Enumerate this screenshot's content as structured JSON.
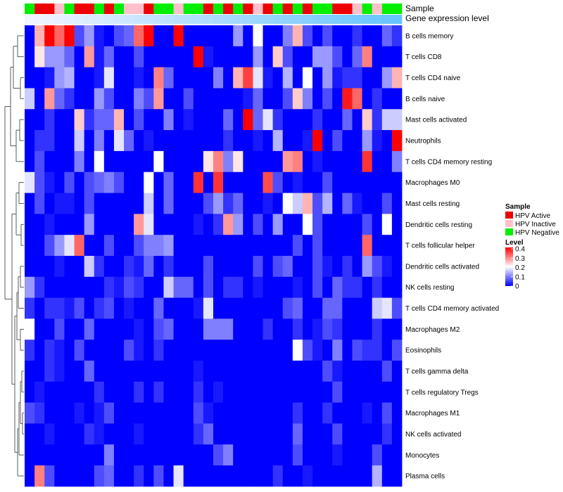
{
  "chart_data": {
    "type": "heatmap",
    "annotation_labels": [
      "Sample",
      "Gene expression level"
    ],
    "rows": [
      "B cells memory",
      "T cells CD8",
      "T cells CD4 naive",
      "B cells naive",
      "Mast cells activated",
      "Neutrophils",
      "T cells CD4 memory resting",
      "Macrophages M0",
      "Mast cells resting",
      "Dendritic cells resting",
      "T cells follicular helper",
      "Dendritic cells activated",
      "NK cells resting",
      "T cells CD4 memory activated",
      "Macrophages M2",
      "Eosinophils",
      "T cells gamma delta",
      "T cells regulatory  Tregs",
      "Macrophages M1",
      "NK cells activated",
      "Monocytes",
      "Plasma cells"
    ],
    "sample_groups": [
      "N",
      "A",
      "A",
      "I",
      "N",
      "A",
      "A",
      "N",
      "A",
      "N",
      "I",
      "I",
      "A",
      "N",
      "N",
      "I",
      "N",
      "N",
      "A",
      "N",
      "A",
      "N",
      "A",
      "I",
      "A",
      "N",
      "A",
      "N",
      "A",
      "N",
      "N",
      "A",
      "A",
      "I",
      "N",
      "I",
      "N",
      "N"
    ],
    "sample_legend": {
      "title": "Sample",
      "entries": [
        {
          "key": "A",
          "label": "HPV Active",
          "color": "#ee0000"
        },
        {
          "key": "I",
          "label": "HPV Inactive",
          "color": "#ffc0cb"
        },
        {
          "key": "N",
          "label": "HPV Negative",
          "color": "#00ee00"
        }
      ]
    },
    "expression_gradient": {
      "low": "#f2f4ff",
      "high": "#66c4ff"
    },
    "level_legend": {
      "title": "Level",
      "ticks": [
        "0.4",
        "0.3",
        "0.2",
        "0.1",
        "0"
      ],
      "min": 0,
      "max": 0.4,
      "colors": {
        "low": "#0000ff",
        "mid": "#ffffff",
        "high": "#ff0000"
      }
    },
    "values": [
      [
        0.0,
        0.26,
        0.4,
        0.32,
        0.4,
        0.06,
        0.12,
        0.02,
        0.0,
        0.06,
        0.08,
        0.32,
        0.4,
        0.0,
        0.0,
        0.4,
        0.0,
        0.0,
        0.0,
        0.0,
        0.0,
        0.12,
        0.0,
        0.2,
        0.0,
        0.0,
        0.1,
        0.26,
        0.06,
        0.0,
        0.06,
        0.0,
        0.0,
        0.04,
        0.0,
        0.0,
        0.08,
        0.04
      ],
      [
        0.0,
        0.22,
        0.12,
        0.12,
        0.08,
        0.0,
        0.28,
        0.02,
        0.08,
        0.0,
        0.0,
        0.06,
        0.0,
        0.0,
        0.0,
        0.0,
        0.0,
        0.4,
        0.02,
        0.0,
        0.0,
        0.0,
        0.0,
        0.12,
        0.0,
        0.24,
        0.06,
        0.0,
        0.0,
        0.12,
        0.12,
        0.06,
        0.0,
        0.08,
        0.3,
        0.0,
        0.0,
        0.0
      ],
      [
        0.0,
        0.0,
        0.02,
        0.12,
        0.14,
        0.0,
        0.0,
        0.02,
        0.18,
        0.0,
        0.0,
        0.02,
        0.0,
        0.3,
        0.08,
        0.0,
        0.0,
        0.0,
        0.0,
        0.1,
        0.0,
        0.26,
        0.35,
        0.18,
        0.02,
        0.0,
        0.14,
        0.0,
        0.2,
        0.0,
        0.12,
        0.02,
        0.04,
        0.04,
        0.0,
        0.0,
        0.12,
        0.26
      ],
      [
        0.16,
        0.0,
        0.28,
        0.08,
        0.04,
        0.0,
        0.0,
        0.12,
        0.06,
        0.0,
        0.0,
        0.1,
        0.06,
        0.28,
        0.0,
        0.0,
        0.06,
        0.0,
        0.0,
        0.0,
        0.0,
        0.0,
        0.02,
        0.08,
        0.0,
        0.0,
        0.06,
        0.24,
        0.1,
        0.0,
        0.06,
        0.0,
        0.38,
        0.32,
        0.0,
        0.04,
        0.0,
        0.0
      ],
      [
        0.0,
        0.0,
        0.04,
        0.0,
        0.0,
        0.24,
        0.04,
        0.08,
        0.08,
        0.26,
        0.0,
        0.06,
        0.0,
        0.0,
        0.1,
        0.0,
        0.02,
        0.0,
        0.0,
        0.0,
        0.08,
        0.0,
        0.4,
        0.08,
        0.18,
        0.04,
        0.0,
        0.0,
        0.0,
        0.04,
        0.0,
        0.0,
        0.08,
        0.0,
        0.24,
        0.04,
        0.16,
        0.16
      ],
      [
        0.0,
        0.04,
        0.04,
        0.0,
        0.0,
        0.16,
        0.0,
        0.1,
        0.0,
        0.18,
        0.08,
        0.0,
        0.02,
        0.0,
        0.0,
        0.0,
        0.0,
        0.0,
        0.0,
        0.0,
        0.04,
        0.0,
        0.0,
        0.02,
        0.0,
        0.14,
        0.0,
        0.0,
        0.02,
        0.4,
        0.0,
        0.06,
        0.0,
        0.0,
        0.12,
        0.02,
        0.0,
        0.4
      ],
      [
        0.0,
        0.06,
        0.0,
        0.0,
        0.0,
        0.1,
        0.0,
        0.2,
        0.0,
        0.0,
        0.0,
        0.0,
        0.0,
        0.2,
        0.0,
        0.0,
        0.0,
        0.0,
        0.22,
        0.3,
        0.1,
        0.22,
        0.0,
        0.0,
        0.0,
        0.0,
        0.28,
        0.3,
        0.0,
        0.02,
        0.0,
        0.0,
        0.0,
        0.0,
        0.36,
        0.0,
        0.0,
        0.1
      ],
      [
        0.18,
        0.06,
        0.02,
        0.0,
        0.06,
        0.0,
        0.06,
        0.08,
        0.1,
        0.06,
        0.0,
        0.0,
        0.2,
        0.0,
        0.08,
        0.0,
        0.0,
        0.36,
        0.0,
        0.36,
        0.0,
        0.0,
        0.0,
        0.0,
        0.34,
        0.06,
        0.0,
        0.02,
        0.0,
        0.0,
        0.06,
        0.0,
        0.0,
        0.0,
        0.0,
        0.0,
        0.0,
        0.0
      ],
      [
        0.0,
        0.06,
        0.0,
        0.02,
        0.02,
        0.0,
        0.06,
        0.0,
        0.0,
        0.0,
        0.0,
        0.0,
        0.16,
        0.0,
        0.08,
        0.0,
        0.0,
        0.0,
        0.06,
        0.12,
        0.04,
        0.08,
        0.0,
        0.0,
        0.02,
        0.0,
        0.2,
        0.16,
        0.26,
        0.06,
        0.14,
        0.0,
        0.08,
        0.02,
        0.0,
        0.0,
        0.06,
        0.0
      ],
      [
        0.0,
        0.0,
        0.02,
        0.0,
        0.0,
        0.0,
        0.12,
        0.0,
        0.0,
        0.0,
        0.0,
        0.28,
        0.18,
        0.0,
        0.0,
        0.0,
        0.0,
        0.02,
        0.0,
        0.04,
        0.28,
        0.12,
        0.0,
        0.06,
        0.0,
        0.12,
        0.0,
        0.0,
        0.2,
        0.06,
        0.0,
        0.0,
        0.0,
        0.0,
        0.06,
        0.0,
        0.2,
        0.0
      ],
      [
        0.0,
        0.0,
        0.06,
        0.12,
        0.18,
        0.32,
        0.0,
        0.0,
        0.06,
        0.0,
        0.0,
        0.06,
        0.1,
        0.1,
        0.12,
        0.0,
        0.0,
        0.0,
        0.0,
        0.0,
        0.0,
        0.0,
        0.0,
        0.0,
        0.0,
        0.0,
        0.0,
        0.06,
        0.0,
        0.06,
        0.0,
        0.0,
        0.0,
        0.0,
        0.32,
        0.0,
        0.0,
        0.0
      ],
      [
        0.0,
        0.0,
        0.0,
        0.02,
        0.0,
        0.0,
        0.16,
        0.04,
        0.0,
        0.0,
        0.04,
        0.02,
        0.08,
        0.0,
        0.04,
        0.0,
        0.0,
        0.0,
        0.06,
        0.0,
        0.0,
        0.0,
        0.0,
        0.06,
        0.0,
        0.06,
        0.08,
        0.0,
        0.0,
        0.06,
        0.02,
        0.0,
        0.04,
        0.0,
        0.12,
        0.06,
        0.02,
        0.0
      ],
      [
        0.12,
        0.04,
        0.0,
        0.0,
        0.0,
        0.0,
        0.0,
        0.0,
        0.04,
        0.02,
        0.06,
        0.04,
        0.0,
        0.0,
        0.16,
        0.08,
        0.08,
        0.0,
        0.06,
        0.0,
        0.04,
        0.04,
        0.0,
        0.02,
        0.0,
        0.0,
        0.0,
        0.02,
        0.0,
        0.06,
        0.0,
        0.08,
        0.04,
        0.04,
        0.0,
        0.04,
        0.0,
        0.0
      ],
      [
        0.04,
        0.0,
        0.04,
        0.04,
        0.02,
        0.06,
        0.0,
        0.04,
        0.06,
        0.0,
        0.02,
        0.0,
        0.0,
        0.08,
        0.0,
        0.0,
        0.0,
        0.02,
        0.18,
        0.0,
        0.0,
        0.0,
        0.0,
        0.0,
        0.0,
        0.0,
        0.06,
        0.08,
        0.0,
        0.0,
        0.08,
        0.08,
        0.0,
        0.0,
        0.0,
        0.16,
        0.18,
        0.06
      ],
      [
        0.2,
        0.0,
        0.0,
        0.06,
        0.0,
        0.0,
        0.08,
        0.0,
        0.0,
        0.0,
        0.0,
        0.02,
        0.0,
        0.06,
        0.08,
        0.0,
        0.0,
        0.0,
        0.1,
        0.1,
        0.1,
        0.0,
        0.0,
        0.0,
        0.04,
        0.0,
        0.0,
        0.04,
        0.0,
        0.02,
        0.06,
        0.04,
        0.0,
        0.0,
        0.0,
        0.04,
        0.0,
        0.0
      ],
      [
        0.04,
        0.0,
        0.04,
        0.02,
        0.0,
        0.06,
        0.0,
        0.0,
        0.0,
        0.0,
        0.06,
        0.02,
        0.0,
        0.04,
        0.0,
        0.0,
        0.0,
        0.0,
        0.0,
        0.0,
        0.0,
        0.0,
        0.0,
        0.0,
        0.0,
        0.0,
        0.0,
        0.2,
        0.06,
        0.02,
        0.0,
        0.1,
        0.0,
        0.06,
        0.04,
        0.04,
        0.0,
        0.06
      ],
      [
        0.0,
        0.0,
        0.04,
        0.02,
        0.0,
        0.0,
        0.08,
        0.0,
        0.0,
        0.0,
        0.0,
        0.0,
        0.0,
        0.0,
        0.0,
        0.0,
        0.0,
        0.02,
        0.0,
        0.0,
        0.0,
        0.0,
        0.0,
        0.0,
        0.0,
        0.0,
        0.0,
        0.0,
        0.0,
        0.0,
        0.06,
        0.02,
        0.0,
        0.0,
        0.0,
        0.0,
        0.06,
        0.0
      ],
      [
        0.0,
        0.02,
        0.0,
        0.0,
        0.0,
        0.0,
        0.0,
        0.04,
        0.0,
        0.0,
        0.0,
        0.04,
        0.0,
        0.04,
        0.0,
        0.0,
        0.0,
        0.04,
        0.0,
        0.02,
        0.0,
        0.0,
        0.0,
        0.0,
        0.0,
        0.0,
        0.0,
        0.0,
        0.0,
        0.0,
        0.0,
        0.06,
        0.0,
        0.0,
        0.0,
        0.0,
        0.0,
        0.0
      ],
      [
        0.06,
        0.04,
        0.0,
        0.0,
        0.0,
        0.02,
        0.0,
        0.02,
        0.06,
        0.0,
        0.0,
        0.0,
        0.0,
        0.0,
        0.0,
        0.0,
        0.0,
        0.06,
        0.02,
        0.0,
        0.0,
        0.0,
        0.0,
        0.0,
        0.0,
        0.0,
        0.0,
        0.04,
        0.0,
        0.0,
        0.04,
        0.0,
        0.0,
        0.0,
        0.02,
        0.0,
        0.06,
        0.0
      ],
      [
        0.0,
        0.0,
        0.02,
        0.0,
        0.0,
        0.0,
        0.04,
        0.02,
        0.0,
        0.0,
        0.0,
        0.02,
        0.0,
        0.0,
        0.0,
        0.0,
        0.0,
        0.04,
        0.08,
        0.0,
        0.0,
        0.0,
        0.0,
        0.0,
        0.0,
        0.0,
        0.0,
        0.08,
        0.0,
        0.0,
        0.0,
        0.06,
        0.0,
        0.0,
        0.0,
        0.0,
        0.04,
        0.0
      ],
      [
        0.0,
        0.0,
        0.0,
        0.0,
        0.0,
        0.0,
        0.0,
        0.0,
        0.1,
        0.0,
        0.0,
        0.0,
        0.0,
        0.0,
        0.0,
        0.0,
        0.0,
        0.0,
        0.0,
        0.06,
        0.1,
        0.0,
        0.0,
        0.0,
        0.0,
        0.0,
        0.0,
        0.06,
        0.0,
        0.0,
        0.0,
        0.02,
        0.0,
        0.0,
        0.0,
        0.06,
        0.0,
        0.0
      ],
      [
        0.0,
        0.3,
        0.06,
        0.0,
        0.0,
        0.0,
        0.0,
        0.06,
        0.08,
        0.0,
        0.0,
        0.04,
        0.0,
        0.06,
        0.0,
        0.18,
        0.0,
        0.0,
        0.0,
        0.0,
        0.0,
        0.0,
        0.0,
        0.0,
        0.0,
        0.04,
        0.0,
        0.0,
        0.02,
        0.0,
        0.0,
        0.0,
        0.0,
        0.0,
        0.0,
        0.14,
        0.0,
        0.0
      ]
    ]
  }
}
